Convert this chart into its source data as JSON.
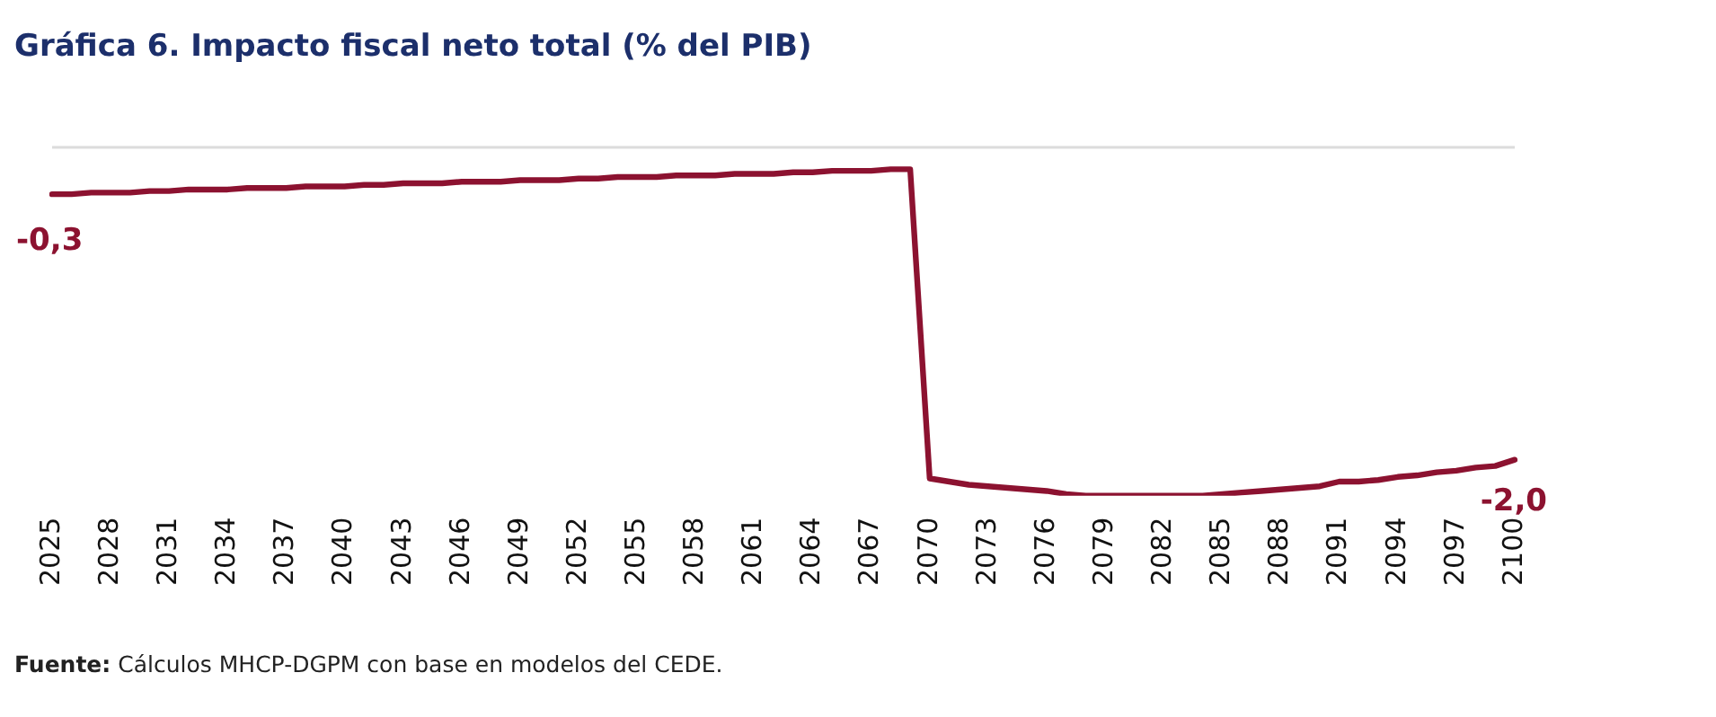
{
  "chart_data": {
    "type": "line",
    "title": "Gráfica 6. Impacto fiscal neto total (% del PIB)",
    "categories": [
      "2025",
      null,
      null,
      "2028",
      null,
      null,
      "2031",
      null,
      null,
      "2034",
      null,
      null,
      "2037",
      null,
      null,
      "2040",
      null,
      null,
      "2043",
      null,
      null,
      "2046",
      null,
      null,
      "2049",
      null,
      null,
      "2052",
      null,
      null,
      "2055",
      null,
      null,
      "2058",
      null,
      null,
      "2061",
      null,
      null,
      "2064",
      null,
      null,
      "2067",
      null,
      null,
      "2070",
      null,
      null,
      "2073",
      null,
      null,
      "2076",
      null,
      null,
      "2079",
      null,
      null,
      "2082",
      null,
      null,
      "2085",
      null,
      null,
      "2088",
      null,
      null,
      "2091",
      null,
      null,
      "2094",
      null,
      null,
      "2097",
      null,
      null,
      "2100"
    ],
    "series": [
      {
        "color": "#8c1230",
        "values": [
          -0.3,
          -0.3,
          -0.29,
          -0.29,
          -0.29,
          -0.28,
          -0.28,
          -0.27,
          -0.27,
          -0.27,
          -0.26,
          -0.26,
          -0.26,
          -0.25,
          -0.25,
          -0.25,
          -0.24,
          -0.24,
          -0.23,
          -0.23,
          -0.23,
          -0.22,
          -0.22,
          -0.22,
          -0.21,
          -0.21,
          -0.21,
          -0.2,
          -0.2,
          -0.19,
          -0.19,
          -0.19,
          -0.18,
          -0.18,
          -0.18,
          -0.17,
          -0.17,
          -0.17,
          -0.16,
          -0.16,
          -0.15,
          -0.15,
          -0.15,
          -0.14,
          -0.14,
          -2.12,
          -2.14,
          -2.16,
          -2.17,
          -2.18,
          -2.19,
          -2.2,
          -2.22,
          -2.23,
          -2.23,
          -2.23,
          -2.23,
          -2.23,
          -2.23,
          -2.23,
          -2.22,
          -2.21,
          -2.2,
          -2.19,
          -2.18,
          -2.17,
          -2.14,
          -2.14,
          -2.13,
          -2.11,
          -2.1,
          -2.08,
          -2.07,
          -2.05,
          -2.04,
          -2.0
        ],
        "value_labels": [
          "-0,3",
          null,
          null,
          null,
          null,
          null,
          null,
          null,
          null,
          null,
          null,
          null,
          null,
          null,
          null,
          null,
          null,
          null,
          null,
          null,
          null,
          null,
          null,
          null,
          null,
          null,
          null,
          null,
          null,
          null,
          null,
          null,
          null,
          null,
          null,
          null,
          null,
          null,
          null,
          null,
          null,
          null,
          null,
          null,
          null,
          null,
          null,
          null,
          null,
          null,
          null,
          null,
          null,
          null,
          null,
          null,
          null,
          null,
          null,
          null,
          null,
          null,
          null,
          null,
          null,
          null,
          null,
          null,
          null,
          null,
          null,
          null,
          null,
          null,
          null,
          "-2,0"
        ]
      }
    ],
    "ref_lines": [
      {
        "axis": "y",
        "value": 0,
        "color": "#dcdcdc"
      }
    ],
    "tick_labels": "x",
    "legend": false,
    "marker": "none",
    "line_style": "solid",
    "annotations": [
      "Fuente: Cálculos MHCP-DGPM con base en modelos del CEDE."
    ]
  }
}
